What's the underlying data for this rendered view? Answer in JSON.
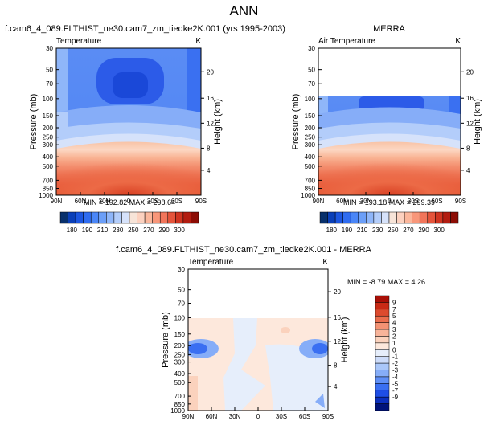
{
  "page_title": "ANN",
  "colors": {
    "abs_palette": [
      "#08306b",
      "#0a3fb8",
      "#1c56e0",
      "#2f6cf0",
      "#4a86f7",
      "#6c9ff8",
      "#8fb6f9",
      "#b3cdfa",
      "#d6e2fa",
      "#f7e4d8",
      "#fcd1bf",
      "#fbb79c",
      "#f8977a",
      "#f1755a",
      "#e4543b",
      "#cf3420",
      "#b21c10",
      "#8c0c04"
    ],
    "diff_palette": [
      "#00137a",
      "#0b2fbe",
      "#1e4ee6",
      "#3a6ff2",
      "#5f8ff7",
      "#86adf8",
      "#aac7f9",
      "#cddcfa",
      "#e6eefb",
      "#fde8dc",
      "#fbd2bd",
      "#f8b49a",
      "#f39273",
      "#ea6d4d",
      "#dd4a2e",
      "#c92a15",
      "#a90f06"
    ]
  },
  "chart_data": [
    {
      "type": "heatmap",
      "panel": "model",
      "title": "f.cam6_4_089.FLTHIST_ne30.cam7_zm_tiedke2K.001 (yrs 1995-2003)",
      "subtitle_left": "Temperature",
      "subtitle_right": "K",
      "ylabel": "Pressure (mb)",
      "y2label": "Height (km)",
      "x_ticks": [
        "90N",
        "60N",
        "30N",
        "0",
        "30S",
        "60S",
        "90S"
      ],
      "y_ticks": [
        "30",
        "50",
        "70",
        "100",
        "150",
        "200",
        "250",
        "300",
        "400",
        "500",
        "700",
        "850",
        "1000"
      ],
      "y2_ticks": [
        "20",
        "16",
        "12",
        "8",
        "4"
      ],
      "stats": "MIN = 192.82   MAX = 298.64",
      "colorbar_labels": [
        "180",
        "190",
        "210",
        "230",
        "250",
        "270",
        "290",
        "300"
      ],
      "min": 192.82,
      "max": 298.64
    },
    {
      "type": "heatmap",
      "panel": "obs",
      "title": "MERRA",
      "subtitle_left": "Air Temperature",
      "subtitle_right": "K",
      "ylabel": "Pressure (mb)",
      "y2label": "Height (km)",
      "x_ticks": [
        "90N",
        "60N",
        "30N",
        "0",
        "30S",
        "60S",
        "90S"
      ],
      "y_ticks": [
        "30",
        "50",
        "70",
        "100",
        "150",
        "200",
        "250",
        "300",
        "400",
        "500",
        "700",
        "850",
        "1000"
      ],
      "y2_ticks": [
        "20",
        "16",
        "12",
        "8",
        "4"
      ],
      "stats": "MIN = 193.18   MAX = 299.39",
      "colorbar_labels": [
        "180",
        "190",
        "210",
        "230",
        "250",
        "270",
        "290",
        "300"
      ],
      "min": 193.18,
      "max": 299.39
    },
    {
      "type": "heatmap",
      "panel": "difference",
      "title": "f.cam6_4_089.FLTHIST_ne30.cam7_zm_tiedke2K.001 - MERRA",
      "subtitle_left": "Temperature",
      "subtitle_right": "K",
      "ylabel": "Pressure (mb)",
      "y2label": "Height (km)",
      "x_ticks": [
        "90N",
        "60N",
        "30N",
        "0",
        "30S",
        "60S",
        "90S"
      ],
      "y_ticks": [
        "30",
        "50",
        "70",
        "100",
        "150",
        "200",
        "250",
        "300",
        "400",
        "500",
        "700",
        "850",
        "1000"
      ],
      "y2_ticks": [
        "20",
        "16",
        "12",
        "8",
        "4"
      ],
      "stats": "MIN =  -8.79  MAX =   4.26",
      "colorbar_labels": [
        "9",
        "7",
        "5",
        "4",
        "3",
        "2",
        "1",
        "0",
        "-1",
        "-2",
        "-3",
        "-4",
        "-5",
        "-7",
        "-9"
      ],
      "min": -8.79,
      "max": 4.26
    }
  ]
}
